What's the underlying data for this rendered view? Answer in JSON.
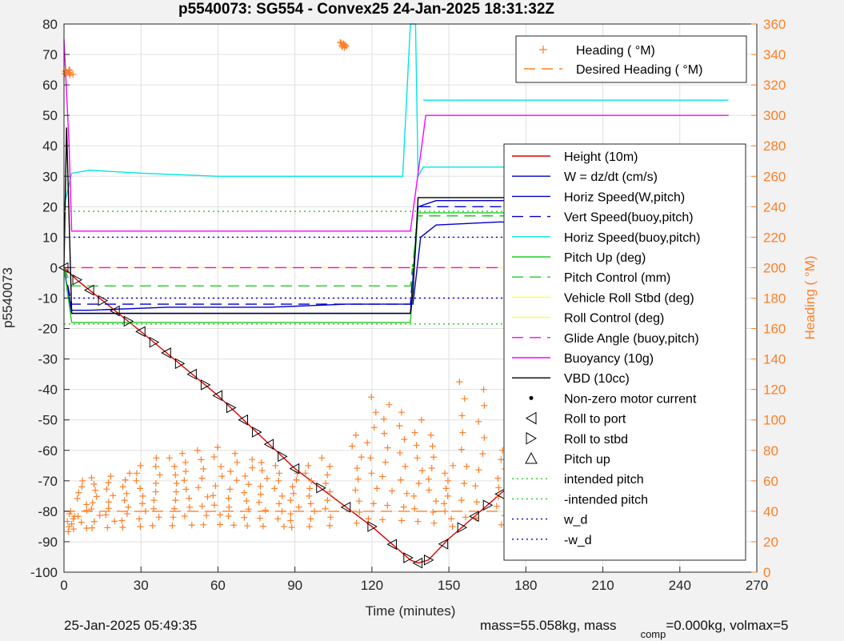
{
  "chart_data": {
    "type": "line",
    "title": "p5540073: SG554 - Convex25 24-Jan-2025 18:31:32Z",
    "xlabel": "Time (minutes)",
    "ylabel_left": "p5540073",
    "ylabel_right": "Heading ( °M)",
    "xlim": [
      0,
      270
    ],
    "ylim_left": [
      -100,
      80
    ],
    "ylim_right": [
      0,
      360
    ],
    "x_ticks": [
      "0",
      "30",
      "60",
      "90",
      "120",
      "150",
      "180",
      "210",
      "240",
      "270"
    ],
    "y_ticks_left": [
      "80",
      "70",
      "60",
      "50",
      "40",
      "30",
      "20",
      "10",
      "0",
      "-10",
      "-20",
      "-30",
      "-40",
      "-50",
      "-60",
      "-70",
      "-80",
      "-90",
      "-100"
    ],
    "y_ticks_right": [
      "360",
      "340",
      "320",
      "300",
      "280",
      "260",
      "240",
      "220",
      "200",
      "180",
      "160",
      "140",
      "120",
      "100",
      "80",
      "60",
      "40",
      "20",
      "0"
    ],
    "grid": true,
    "legend_top": {
      "placement": "top-right",
      "entries": [
        "Heading ( °M)",
        "Desired Heading ( °M)"
      ]
    },
    "legend_main": {
      "placement": "right",
      "entries": [
        "Height (10m)",
        "W = dz/dt (cm/s)",
        "Horiz Speed(W,pitch)",
        "Vert Speed(buoy,pitch)",
        "Horiz Speed(buoy,pitch)",
        "Pitch Up (deg)",
        "Pitch Control (mm)",
        "Vehicle Roll Stbd (deg)",
        "Roll Control (deg)",
        "Glide Angle (buoy,pitch)",
        "Buoyancy (10g)",
        "VBD (10cc)",
        "Non-zero motor current",
        "Roll to port",
        "Roll to stbd",
        "Pitch up",
        "intended pitch",
        "-intended pitch",
        "w_d",
        "-w_d"
      ]
    },
    "series": [
      {
        "name": "Height (10m)",
        "color": "#e00000",
        "x": [
          0,
          5,
          30,
          60,
          90,
          120,
          135,
          138,
          142,
          150,
          180,
          210,
          240,
          259
        ],
        "y": [
          0,
          -4,
          -21,
          -42,
          -66,
          -85,
          -96,
          -97,
          -96,
          -89,
          -67,
          -44,
          -21,
          0
        ]
      },
      {
        "name": "W = dz/dt (cm/s)",
        "color": "#0000cc",
        "x": [
          0,
          3,
          10,
          40,
          80,
          110,
          132,
          136,
          139,
          145,
          170,
          200,
          230,
          255,
          259
        ],
        "y": [
          -1,
          -14,
          -14,
          -13,
          -13,
          -12,
          -12,
          -12,
          10,
          14,
          15,
          14,
          14,
          13,
          13
        ]
      },
      {
        "name": "Horiz Speed(W,pitch)",
        "color": "#0000cc",
        "x": [
          0,
          3,
          135,
          138,
          145,
          200,
          259
        ],
        "y": [
          0,
          -15,
          -15,
          20,
          22,
          22,
          22
        ]
      },
      {
        "name": "Vert Speed(buoy,pitch)",
        "color": "#0000cc",
        "x": [
          0,
          3,
          135,
          138,
          259
        ],
        "y": [
          0,
          -12,
          -12,
          20,
          20
        ]
      },
      {
        "name": "Horiz Speed(buoy,pitch)",
        "color": "#00e5e5",
        "x": [
          0,
          3,
          10,
          30,
          60,
          90,
          120,
          132,
          135,
          137,
          138,
          140,
          170,
          200,
          230,
          255,
          259
        ],
        "y": [
          20,
          31,
          32,
          31,
          30,
          30,
          30,
          30,
          80,
          80,
          30,
          33,
          33,
          33,
          33,
          32,
          32
        ]
      },
      {
        "name": "Horiz Speed(buoy,pitch) upper",
        "color": "#00e5e5",
        "x": [
          140,
          170,
          200,
          230,
          259
        ],
        "y": [
          55,
          55,
          55,
          55,
          55
        ]
      },
      {
        "name": "Pitch Up (deg)",
        "color": "#22cc22",
        "x": [
          0,
          3,
          135,
          138,
          259
        ],
        "y": [
          0,
          -18,
          -18,
          18,
          18
        ]
      },
      {
        "name": "Pitch Control (mm)",
        "color": "#22cc22",
        "x": [
          0,
          3,
          135,
          138,
          259
        ],
        "y": [
          0,
          -6,
          -6,
          17,
          17
        ]
      },
      {
        "name": "Roll Control (deg)",
        "color": "#ffff33",
        "x": [
          0,
          259
        ],
        "y": [
          0,
          0
        ]
      },
      {
        "name": "Glide Angle (buoy,pitch)",
        "color": "#ff00ff",
        "x": [
          0,
          259
        ],
        "y": [
          0,
          0
        ]
      },
      {
        "name": "Buoyancy (10g)",
        "color": "#ff00ff",
        "x": [
          0,
          2,
          3,
          135,
          141,
          259
        ],
        "y": [
          75,
          40,
          12,
          12,
          50,
          50
        ]
      },
      {
        "name": "VBD (10cc)",
        "color": "#000000",
        "x": [
          0,
          1,
          3,
          135,
          136,
          138,
          259
        ],
        "y": [
          0,
          46,
          -15,
          -15,
          -8,
          23,
          23
        ]
      },
      {
        "name": "intended pitch",
        "color": "#22cc22",
        "x": [
          0,
          259
        ],
        "y": [
          18.5,
          18.5
        ]
      },
      {
        "name": "-intended pitch",
        "color": "#22cc22",
        "x": [
          0,
          259
        ],
        "y": [
          -18.5,
          -18.5
        ]
      },
      {
        "name": "w_d",
        "color": "#0000cc",
        "x": [
          0,
          259
        ],
        "y": [
          10,
          10
        ]
      },
      {
        "name": "-w_d",
        "color": "#0000cc",
        "x": [
          0,
          259
        ],
        "y": [
          -10,
          -10
        ]
      },
      {
        "name": "Desired Heading ( °M)",
        "color": "#ff7f27",
        "x": [
          0,
          259
        ],
        "y_right": [
          40,
          40
        ]
      }
    ],
    "heading_clusters": [
      {
        "x": 2,
        "h": 330
      },
      {
        "x": 3,
        "h": 40
      },
      {
        "x": 7,
        "h": 60
      },
      {
        "x": 12,
        "h": 62
      },
      {
        "x": 18,
        "h": 63
      },
      {
        "x": 24,
        "h": 65
      },
      {
        "x": 30,
        "h": 70
      },
      {
        "x": 36,
        "h": 75
      },
      {
        "x": 42,
        "h": 75
      },
      {
        "x": 48,
        "h": 78
      },
      {
        "x": 54,
        "h": 80
      },
      {
        "x": 60,
        "h": 82
      },
      {
        "x": 66,
        "h": 78
      },
      {
        "x": 72,
        "h": 74
      },
      {
        "x": 78,
        "h": 72
      },
      {
        "x": 84,
        "h": 70
      },
      {
        "x": 90,
        "h": 65
      },
      {
        "x": 96,
        "h": 70
      },
      {
        "x": 102,
        "h": 75
      },
      {
        "x": 108,
        "h": 348
      },
      {
        "x": 114,
        "h": 90
      },
      {
        "x": 120,
        "h": 115
      },
      {
        "x": 126,
        "h": 110
      },
      {
        "x": 132,
        "h": 105
      },
      {
        "x": 138,
        "h": 100
      },
      {
        "x": 144,
        "h": 90
      },
      {
        "x": 150,
        "h": 70
      },
      {
        "x": 156,
        "h": 125
      },
      {
        "x": 162,
        "h": 120
      },
      {
        "x": 170,
        "h": 80
      },
      {
        "x": 178,
        "h": 100
      },
      {
        "x": 186,
        "h": 95
      },
      {
        "x": 194,
        "h": 95
      },
      {
        "x": 202,
        "h": 100
      },
      {
        "x": 210,
        "h": 105
      },
      {
        "x": 218,
        "h": 100
      },
      {
        "x": 226,
        "h": 110
      },
      {
        "x": 234,
        "h": 110
      },
      {
        "x": 242,
        "h": 105
      },
      {
        "x": 250,
        "h": 95
      },
      {
        "x": 256,
        "h": 80
      }
    ],
    "roll_markers": [
      0,
      5,
      10,
      15,
      20,
      25,
      30,
      35,
      40,
      45,
      50,
      55,
      60,
      65,
      70,
      75,
      80,
      85,
      90,
      100,
      110,
      120,
      128,
      134,
      138,
      142,
      148,
      155,
      160,
      165,
      170,
      176,
      182,
      188,
      194,
      200,
      206,
      212,
      218,
      224,
      230,
      236,
      242,
      248,
      254,
      259
    ]
  },
  "footer": {
    "date": "25-Jan-2025 05:49:35",
    "mass_prefix": "mass=55.058kg, mass",
    "mass_sub": "comp",
    "mass_suffix": "=0.000kg, volmax=5"
  }
}
